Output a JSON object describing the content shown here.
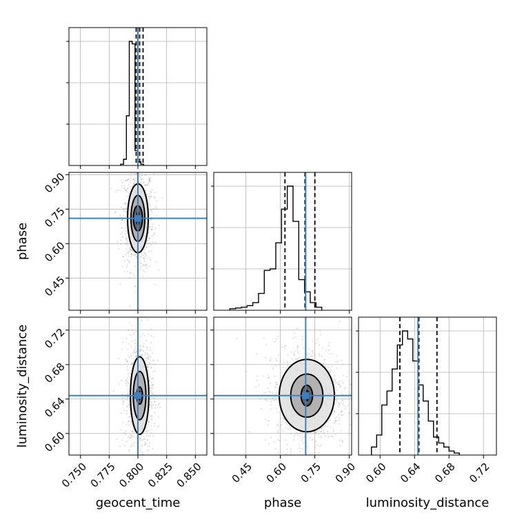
{
  "chart_data": {
    "type": "corner",
    "params": [
      {
        "key": "geocent_time",
        "label": "geocent_time",
        "range": [
          0.74,
          0.86
        ],
        "ticks": [
          "0.750",
          "0.775",
          "0.800",
          "0.825",
          "0.850"
        ],
        "tick_values": [
          0.75,
          0.775,
          0.8,
          0.825,
          0.85
        ],
        "truth": 0.8,
        "quantiles": [
          0.7985,
          0.8015,
          0.8045
        ]
      },
      {
        "key": "phase",
        "label": "phase",
        "range": [
          0.31,
          0.91
        ],
        "ticks": [
          "0.45",
          "0.60",
          "0.75",
          "0.90"
        ],
        "tick_values": [
          0.45,
          0.6,
          0.75,
          0.9
        ],
        "truth": 0.71,
        "quantiles": [
          0.62,
          0.707,
          0.75
        ]
      },
      {
        "key": "luminosity_distance",
        "label": "luminosity_distance",
        "range": [
          0.575,
          0.735
        ],
        "ticks": [
          "0.60",
          "0.64",
          "0.68",
          "0.72"
        ],
        "tick_values": [
          0.6,
          0.64,
          0.68,
          0.72
        ],
        "truth": 0.644,
        "quantiles": [
          0.623,
          0.645,
          0.666
        ]
      }
    ],
    "hist1d": [
      {
        "param": "geocent_time",
        "bin_start": 0.785,
        "bin_width": 0.0025,
        "counts": [
          1,
          5,
          40,
          100,
          98,
          12,
          3,
          1
        ]
      },
      {
        "param": "phase",
        "bin_start": 0.38,
        "bin_width": 0.025,
        "counts": [
          1,
          1.5,
          2,
          3,
          5,
          11,
          26,
          27,
          44,
          66,
          81,
          58,
          20,
          12,
          5,
          2
        ]
      },
      {
        "param": "luminosity_distance",
        "bin_start": 0.59,
        "bin_width": 0.006,
        "counts": [
          4,
          10,
          25,
          32,
          43,
          55,
          62,
          58,
          47,
          35,
          27,
          17,
          9,
          6,
          4,
          2,
          1
        ]
      }
    ],
    "hist2d": [
      {
        "x": "geocent_time",
        "y": "phase",
        "center": [
          0.8,
          0.71
        ],
        "contours": [
          [
            0.004,
            0.055
          ],
          [
            0.006,
            0.1
          ],
          [
            0.009,
            0.15
          ]
        ]
      },
      {
        "x": "geocent_time",
        "y": "luminosity_distance",
        "center": [
          0.8015,
          0.644
        ],
        "contours": [
          [
            0.0025,
            0.01
          ],
          [
            0.0055,
            0.028
          ],
          [
            0.008,
            0.045
          ]
        ]
      },
      {
        "x": "phase",
        "y": "luminosity_distance",
        "center": [
          0.715,
          0.644
        ],
        "contours": [
          [
            0.025,
            0.012
          ],
          [
            0.07,
            0.025
          ],
          [
            0.12,
            0.042
          ]
        ]
      }
    ],
    "grid": true
  }
}
